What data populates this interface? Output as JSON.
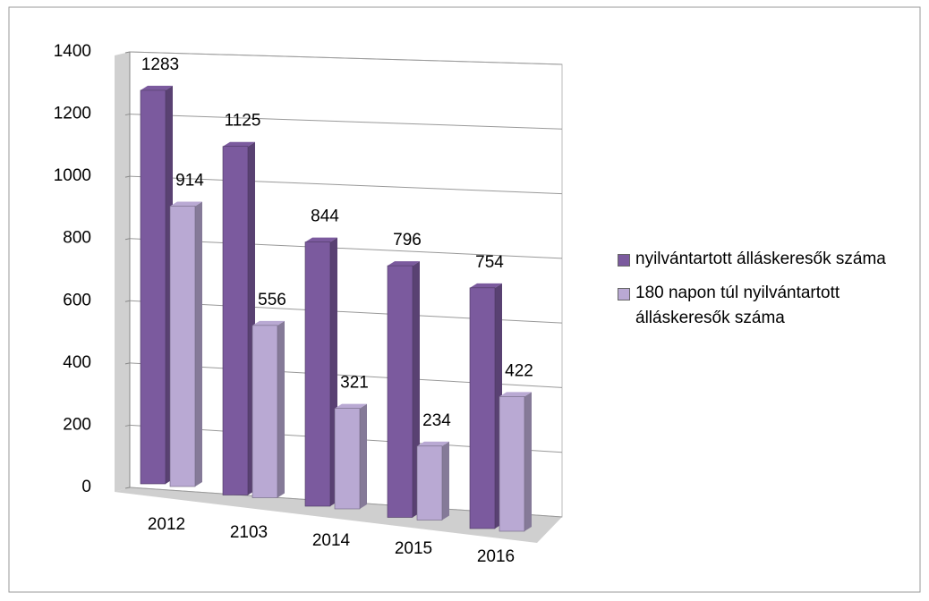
{
  "chart_data": {
    "type": "bar3d",
    "categories": [
      "2012",
      "2103",
      "2014",
      "2015",
      "2016"
    ],
    "series": [
      {
        "name": "nyilvántartott álláskeresők száma",
        "color": "#7b5a9e",
        "values": [
          1283,
          1125,
          844,
          796,
          754
        ]
      },
      {
        "name": "180 napon túl nyilvántartott álláskeresők száma",
        "color": "#b9a9d3",
        "values": [
          914,
          556,
          321,
          234,
          422
        ]
      }
    ],
    "ylim": [
      0,
      1400
    ],
    "yticks": [
      0,
      200,
      400,
      600,
      800,
      1000,
      1200,
      1400
    ],
    "grid": true,
    "legend": "right"
  }
}
